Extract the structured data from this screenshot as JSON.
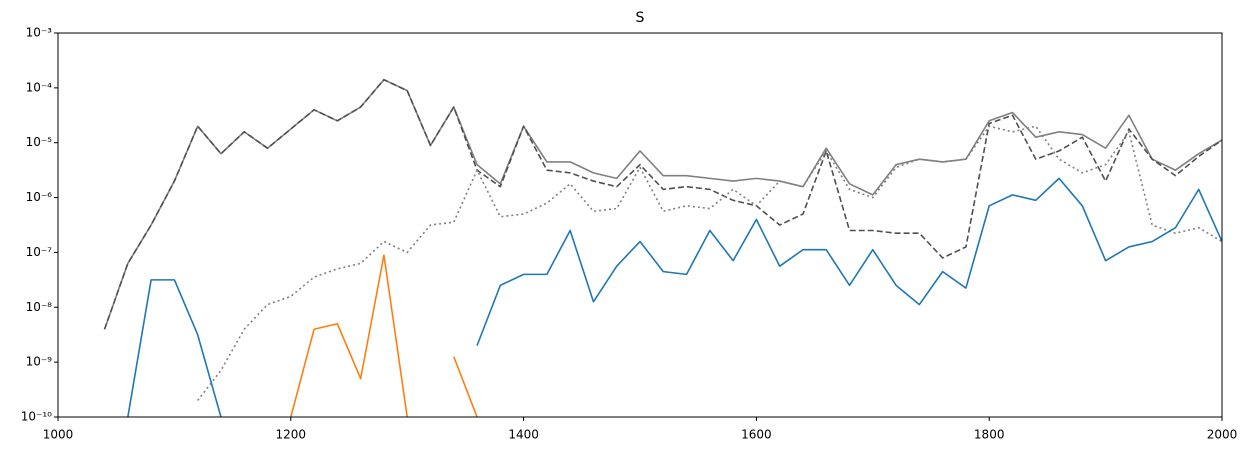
{
  "chart_data": {
    "type": "line",
    "title": "S",
    "log_y": true,
    "xlim": [
      1000,
      2000
    ],
    "xticks": [
      1000,
      1200,
      1400,
      1600,
      1800,
      2000
    ],
    "ylim": [
      1e-10,
      0.001
    ],
    "yticks": [
      {
        "value": 1e-10,
        "label": "10⁻¹⁰"
      },
      {
        "value": 1e-09,
        "label": "10⁻⁹"
      },
      {
        "value": 1e-08,
        "label": "10⁻⁸"
      },
      {
        "value": 1e-07,
        "label": "10⁻⁷"
      },
      {
        "value": 1e-06,
        "label": "10⁻⁶"
      },
      {
        "value": 1e-05,
        "label": "10⁻⁵"
      },
      {
        "value": 0.0001,
        "label": "10⁻⁴"
      },
      {
        "value": 0.001,
        "label": "10⁻³"
      }
    ],
    "grid": false,
    "x": [
      1000,
      1020,
      1040,
      1060,
      1080,
      1100,
      1120,
      1140,
      1160,
      1180,
      1200,
      1220,
      1240,
      1260,
      1280,
      1300,
      1320,
      1340,
      1360,
      1380,
      1400,
      1420,
      1440,
      1460,
      1480,
      1500,
      1520,
      1540,
      1560,
      1580,
      1600,
      1620,
      1640,
      1660,
      1680,
      1700,
      1720,
      1740,
      1760,
      1780,
      1800,
      1820,
      1840,
      1860,
      1880,
      1900,
      1920,
      1940,
      1960,
      1980,
      2000
    ],
    "series": [
      {
        "color": "#808080",
        "linestyle": "solid",
        "values": [
          null,
          null,
          3.98e-09,
          6.31e-08,
          3.16e-07,
          2e-06,
          2e-05,
          6.31e-06,
          1.58e-05,
          7.94e-06,
          1.78e-05,
          3.98e-05,
          2.51e-05,
          4.47e-05,
          0.000141,
          8.91e-05,
          8.91e-06,
          4.47e-05,
          3.98e-06,
          1.78e-06,
          2e-05,
          4.47e-06,
          4.47e-06,
          2.82e-06,
          2.24e-06,
          7.08e-06,
          2.51e-06,
          2.51e-06,
          2.24e-06,
          2e-06,
          2.24e-06,
          2e-06,
          1.58e-06,
          7.94e-06,
          1.78e-06,
          1.12e-06,
          3.98e-06,
          5.01e-06,
          4.47e-06,
          5.01e-06,
          2.51e-05,
          3.55e-05,
          1.26e-05,
          1.58e-05,
          1.41e-05,
          7.94e-06,
          3.16e-05,
          5.01e-06,
          3.16e-06,
          6.31e-06,
          1.12e-05
        ]
      },
      {
        "color": "#505050",
        "linestyle": "dashed",
        "values": [
          null,
          null,
          3.98e-09,
          6.31e-08,
          3.16e-07,
          2e-06,
          2e-05,
          6.31e-06,
          1.58e-05,
          7.94e-06,
          1.78e-05,
          3.98e-05,
          2.51e-05,
          4.47e-05,
          0.000141,
          8.91e-05,
          8.91e-06,
          4.47e-05,
          3.16e-06,
          1.58e-06,
          2e-05,
          3.16e-06,
          2.82e-06,
          2e-06,
          1.58e-06,
          3.98e-06,
          1.41e-06,
          1.58e-06,
          1.41e-06,
          8.91e-07,
          7.08e-07,
          3.16e-07,
          5.01e-07,
          7.08e-06,
          2.51e-07,
          2.51e-07,
          2.24e-07,
          2.24e-07,
          7.94e-08,
          1.26e-07,
          2.24e-05,
          3.16e-05,
          5.01e-06,
          7.08e-06,
          1.26e-05,
          2e-06,
          1.78e-05,
          5.01e-06,
          2.51e-06,
          5.62e-06,
          1.12e-05
        ]
      },
      {
        "color": "#808080",
        "linestyle": "dotted",
        "values": [
          null,
          null,
          null,
          null,
          null,
          null,
          2e-10,
          7.08e-10,
          3.98e-09,
          1.12e-08,
          1.58e-08,
          3.55e-08,
          5.01e-08,
          6.31e-08,
          1.58e-07,
          1e-07,
          3.16e-07,
          3.55e-07,
          3.16e-06,
          4.47e-07,
          5.01e-07,
          7.94e-07,
          1.78e-06,
          5.62e-07,
          6.31e-07,
          3.55e-06,
          5.62e-07,
          7.08e-07,
          6.31e-07,
          1.41e-06,
          7.08e-07,
          2e-06,
          1.58e-06,
          7.08e-06,
          1.41e-06,
          1e-06,
          3.55e-06,
          5.01e-06,
          4.47e-06,
          5.01e-06,
          2e-05,
          1.58e-05,
          2e-05,
          5.01e-06,
          2.82e-06,
          3.98e-06,
          1.58e-05,
          3.16e-07,
          2.24e-07,
          2.82e-07,
          1.58e-07
        ]
      },
      {
        "color": "#1f77b4",
        "linestyle": "solid",
        "values": [
          null,
          null,
          null,
          1e-10,
          3.16e-08,
          3.16e-08,
          3.16e-09,
          1e-10,
          null,
          null,
          null,
          null,
          null,
          null,
          null,
          null,
          null,
          null,
          2e-09,
          2.51e-08,
          3.98e-08,
          3.98e-08,
          2.51e-07,
          1.26e-08,
          5.62e-08,
          1.58e-07,
          4.47e-08,
          3.98e-08,
          2.51e-07,
          7.08e-08,
          3.98e-07,
          5.62e-08,
          1.12e-07,
          1.12e-07,
          2.51e-08,
          1.12e-07,
          2.51e-08,
          1.12e-08,
          4.47e-08,
          2.24e-08,
          7.08e-07,
          1.12e-06,
          8.91e-07,
          2.24e-06,
          7.08e-07,
          7.08e-08,
          1.26e-07,
          1.58e-07,
          2.82e-07,
          1.41e-06,
          1.58e-07
        ]
      },
      {
        "color": "#ff7f0e",
        "linestyle": "solid",
        "values": [
          null,
          null,
          null,
          null,
          null,
          null,
          null,
          null,
          null,
          null,
          1e-10,
          3.98e-09,
          5.01e-09,
          5.01e-10,
          8.91e-08,
          1e-10,
          null,
          1.26e-09,
          1e-10,
          null,
          null,
          null,
          null,
          null,
          null,
          null,
          null,
          null,
          null,
          null,
          null,
          null,
          null,
          null,
          null,
          null,
          null,
          null,
          null,
          null,
          null,
          null,
          null,
          null,
          null,
          null,
          null,
          null,
          null,
          null,
          null
        ]
      }
    ]
  }
}
